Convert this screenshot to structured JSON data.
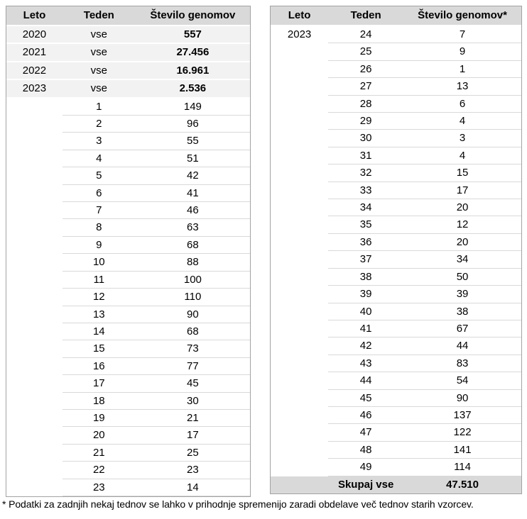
{
  "left_table": {
    "headers": [
      "Leto",
      "Teden",
      "Število genomov"
    ],
    "rows": [
      {
        "style": "year",
        "cells": [
          "2020",
          "vse",
          "557"
        ]
      },
      {
        "style": "year",
        "cells": [
          "2021",
          "vse",
          "27.456"
        ]
      },
      {
        "style": "year",
        "cells": [
          "2022",
          "vse",
          "16.961"
        ]
      },
      {
        "style": "year",
        "cells": [
          "2023",
          "vse",
          "2.536"
        ]
      },
      {
        "style": "week",
        "cells": [
          "",
          "1",
          "149"
        ]
      },
      {
        "style": "week",
        "cells": [
          "",
          "2",
          "96"
        ]
      },
      {
        "style": "week",
        "cells": [
          "",
          "3",
          "55"
        ]
      },
      {
        "style": "week",
        "cells": [
          "",
          "4",
          "51"
        ]
      },
      {
        "style": "week",
        "cells": [
          "",
          "5",
          "42"
        ]
      },
      {
        "style": "week",
        "cells": [
          "",
          "6",
          "41"
        ]
      },
      {
        "style": "week",
        "cells": [
          "",
          "7",
          "46"
        ]
      },
      {
        "style": "week",
        "cells": [
          "",
          "8",
          "63"
        ]
      },
      {
        "style": "week",
        "cells": [
          "",
          "9",
          "68"
        ]
      },
      {
        "style": "week",
        "cells": [
          "",
          "10",
          "88"
        ]
      },
      {
        "style": "week",
        "cells": [
          "",
          "11",
          "100"
        ]
      },
      {
        "style": "week",
        "cells": [
          "",
          "12",
          "110"
        ]
      },
      {
        "style": "week",
        "cells": [
          "",
          "13",
          "90"
        ]
      },
      {
        "style": "week",
        "cells": [
          "",
          "14",
          "68"
        ]
      },
      {
        "style": "week",
        "cells": [
          "",
          "15",
          "73"
        ]
      },
      {
        "style": "week",
        "cells": [
          "",
          "16",
          "77"
        ]
      },
      {
        "style": "week",
        "cells": [
          "",
          "17",
          "45"
        ]
      },
      {
        "style": "week",
        "cells": [
          "",
          "18",
          "30"
        ]
      },
      {
        "style": "week",
        "cells": [
          "",
          "19",
          "21"
        ]
      },
      {
        "style": "week",
        "cells": [
          "",
          "20",
          "17"
        ]
      },
      {
        "style": "week",
        "cells": [
          "",
          "21",
          "25"
        ]
      },
      {
        "style": "week",
        "cells": [
          "",
          "22",
          "23"
        ]
      },
      {
        "style": "week",
        "cells": [
          "",
          "23",
          "14"
        ]
      }
    ]
  },
  "right_table": {
    "headers": [
      "Leto",
      "Teden",
      "Število genomov*"
    ],
    "rows": [
      {
        "style": "week",
        "cells": [
          "2023",
          "24",
          "7"
        ]
      },
      {
        "style": "week",
        "cells": [
          "",
          "25",
          "9"
        ]
      },
      {
        "style": "week",
        "cells": [
          "",
          "26",
          "1"
        ]
      },
      {
        "style": "week",
        "cells": [
          "",
          "27",
          "13"
        ]
      },
      {
        "style": "week",
        "cells": [
          "",
          "28",
          "6"
        ]
      },
      {
        "style": "week",
        "cells": [
          "",
          "29",
          "4"
        ]
      },
      {
        "style": "week",
        "cells": [
          "",
          "30",
          "3"
        ]
      },
      {
        "style": "week",
        "cells": [
          "",
          "31",
          "4"
        ]
      },
      {
        "style": "week",
        "cells": [
          "",
          "32",
          "15"
        ]
      },
      {
        "style": "week",
        "cells": [
          "",
          "33",
          "17"
        ]
      },
      {
        "style": "week",
        "cells": [
          "",
          "34",
          "20"
        ]
      },
      {
        "style": "week",
        "cells": [
          "",
          "35",
          "12"
        ]
      },
      {
        "style": "week",
        "cells": [
          "",
          "36",
          "20"
        ]
      },
      {
        "style": "week",
        "cells": [
          "",
          "37",
          "34"
        ]
      },
      {
        "style": "week",
        "cells": [
          "",
          "38",
          "50"
        ]
      },
      {
        "style": "week",
        "cells": [
          "",
          "39",
          "39"
        ]
      },
      {
        "style": "week",
        "cells": [
          "",
          "40",
          "38"
        ]
      },
      {
        "style": "week",
        "cells": [
          "",
          "41",
          "67"
        ]
      },
      {
        "style": "week",
        "cells": [
          "",
          "42",
          "44"
        ]
      },
      {
        "style": "week",
        "cells": [
          "",
          "43",
          "83"
        ]
      },
      {
        "style": "week",
        "cells": [
          "",
          "44",
          "54"
        ]
      },
      {
        "style": "week",
        "cells": [
          "",
          "45",
          "90"
        ]
      },
      {
        "style": "week",
        "cells": [
          "",
          "46",
          "137"
        ]
      },
      {
        "style": "week",
        "cells": [
          "",
          "47",
          "122"
        ]
      },
      {
        "style": "week",
        "cells": [
          "",
          "48",
          "141"
        ]
      },
      {
        "style": "week",
        "cells": [
          "",
          "49",
          "114"
        ]
      }
    ],
    "footer": {
      "leto": "",
      "label": "Skupaj vse",
      "value": "47.510"
    }
  },
  "footnote": {
    "text": "* Podatki za zadnjih nekaj tednov se lahko v prihodnje spremenijo zaradi obdelave več tednov starih vzorcev."
  },
  "colors": {
    "header_fill": "#d9d9d9",
    "year_row_fill": "#f2f2f2",
    "total_row_fill": "#d9d9d9",
    "table_border": "#a3a3a3",
    "row_separator": "#d9d9d9",
    "text": "#000000",
    "background": "#ffffff"
  }
}
